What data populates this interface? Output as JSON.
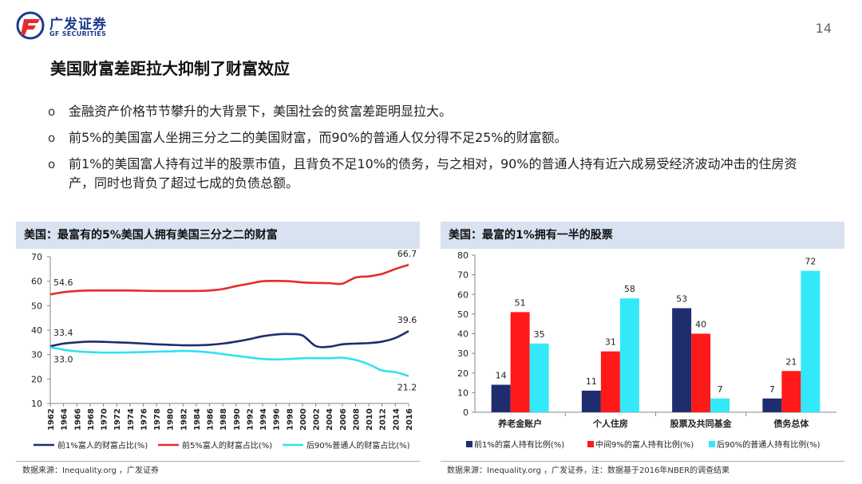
{
  "header": {
    "logo_cn": "广发证券",
    "logo_en": "GF SECURITIES",
    "page_number": "14",
    "brand_colors": {
      "blue": "#1a3a8a",
      "red": "#e52b2b"
    }
  },
  "title": "美国财富差距拉大抑制了财富效应",
  "bullets": [
    {
      "marker": "o",
      "text": "金融资产价格节节攀升的大背景下，美国社会的贫富差距明显拉大。"
    },
    {
      "marker": "o",
      "text": "前5%的美国富人坐拥三分之二的美国财富，而90%的普通人仅分得不足25%的财富额。"
    },
    {
      "marker": "o",
      "text": "前1%的美国富人持有过半的股票市值，且背负不足10%的债务，与之相对，90%的普通人持有近六成易受经济波动冲击的住房资产，同时也背负了超过七成的负债总额。"
    }
  ],
  "left_panel": {
    "header": "美国：最富有的5%美国人拥有美国三分之二的财富",
    "source": "数据来源：Inequality.org ，广发证券"
  },
  "right_panel": {
    "header": "美国：最富的1%拥有一半的股票",
    "source": "数据来源：Inequality.org ，广发证券，注：数据基于2016年NBER的调查结果"
  },
  "chart_data": [
    {
      "type": "line",
      "title": "美国：最富有的5%美国人拥有美国三分之二的财富",
      "xlabel": "",
      "ylabel": "",
      "ylim": [
        10,
        70
      ],
      "yticks": [
        10,
        20,
        30,
        40,
        50,
        60,
        70
      ],
      "x": [
        1962,
        1964,
        1966,
        1968,
        1970,
        1972,
        1974,
        1976,
        1978,
        1980,
        1982,
        1984,
        1986,
        1988,
        1990,
        1992,
        1994,
        1996,
        1998,
        2000,
        2002,
        2004,
        2006,
        2008,
        2010,
        2012,
        2014,
        2016
      ],
      "series": [
        {
          "name": "前1%富人的财富占比(%)",
          "color": "#1f2d6e",
          "values": [
            33.4,
            34.5,
            35.0,
            35.3,
            35.2,
            35.0,
            34.8,
            34.5,
            34.2,
            34.0,
            33.8,
            33.8,
            34.0,
            34.5,
            35.3,
            36.3,
            37.5,
            38.2,
            38.4,
            37.8,
            33.5,
            33.2,
            34.2,
            34.5,
            34.7,
            35.3,
            36.8,
            39.6
          ]
        },
        {
          "name": "前5%富人的财富占比(%)",
          "color": "#e52b2b",
          "values": [
            54.6,
            55.5,
            56.0,
            56.2,
            56.2,
            56.2,
            56.2,
            56.1,
            56.0,
            56.0,
            56.0,
            56.0,
            56.2,
            56.8,
            58.0,
            59.0,
            60.0,
            60.1,
            60.0,
            59.5,
            59.3,
            59.2,
            59.0,
            61.5,
            62.0,
            63.0,
            65.0,
            66.7
          ]
        },
        {
          "name": "后90%普通人的财富占比(%)",
          "color": "#33e0f0",
          "values": [
            33.0,
            32.0,
            31.3,
            31.0,
            30.8,
            30.8,
            30.9,
            31.0,
            31.2,
            31.3,
            31.5,
            31.3,
            30.9,
            30.2,
            29.5,
            28.8,
            28.2,
            28.0,
            28.2,
            28.5,
            28.5,
            28.5,
            28.7,
            27.8,
            26.0,
            23.5,
            22.8,
            21.2
          ]
        }
      ],
      "data_labels": [
        {
          "series": "前5%富人的财富占比(%)",
          "x": 1962,
          "label": "54.6"
        },
        {
          "series": "前5%富人的财富占比(%)",
          "x": 2016,
          "label": "66.7"
        },
        {
          "series": "前1%富人的财富占比(%)",
          "x": 1962,
          "label": "33.4"
        },
        {
          "series": "前1%富人的财富占比(%)",
          "x": 2016,
          "label": "39.6"
        },
        {
          "series": "后90%普通人的财富占比(%)",
          "x": 1962,
          "label": "33.0"
        },
        {
          "series": "后90%普通人的财富占比(%)",
          "x": 2016,
          "label": "21.2"
        }
      ],
      "legend": "bottom"
    },
    {
      "type": "bar",
      "title": "美国：最富的1%拥有一半的股票",
      "xlabel": "",
      "ylabel": "",
      "ylim": [
        0,
        80
      ],
      "yticks": [
        0,
        10,
        20,
        30,
        40,
        50,
        60,
        70,
        80
      ],
      "categories": [
        "养老金账户",
        "个人住房",
        "股票及共同基金",
        "债务总体"
      ],
      "series": [
        {
          "name": "前1%的富人持有比例(%)",
          "color": "#1f2d6e",
          "values": [
            14,
            11,
            53,
            7
          ]
        },
        {
          "name": "中间9%的富人持有比例(%)",
          "color": "#ff1a1a",
          "values": [
            51,
            31,
            40,
            21
          ]
        },
        {
          "name": "后90%的普通人持有比例(%)",
          "color": "#33e8f8",
          "values": [
            35,
            58,
            7,
            72
          ]
        }
      ],
      "legend": "bottom"
    }
  ]
}
